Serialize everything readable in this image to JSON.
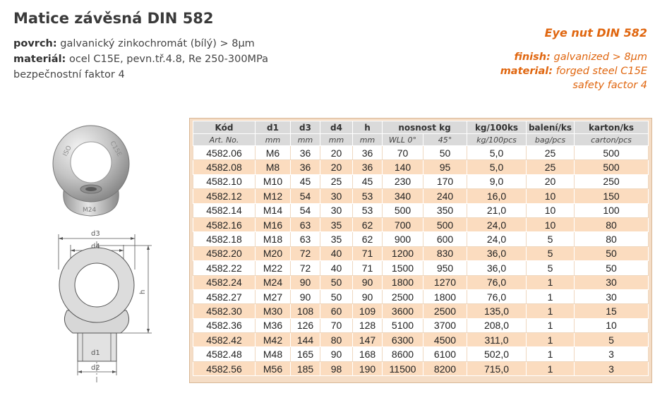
{
  "title": "Matice závěsná DIN 582",
  "cz": {
    "surface_label": "povrch:",
    "surface_value": "galvanický zinkochromát (bílý) > 8μm",
    "material_label": "materiál:",
    "material_value": "ocel C15E, pevn.tř.4.8, Re 250-300MPa",
    "safety": "bezpečnostní faktor 4"
  },
  "en": {
    "title": "Eye nut DIN 582",
    "finish_label": "finish:",
    "finish_value": "galvanized > 8μm",
    "material_label": "material:",
    "material_value": "forged steel C15E",
    "safety": "safety factor 4"
  },
  "photo_markings": {
    "left": "ISO",
    "right": "C15E",
    "bottom": "M24"
  },
  "drawing_labels": {
    "d3": "d3",
    "d4": "d4",
    "h": "h",
    "d1": "d1",
    "d2": "d2"
  },
  "colors": {
    "accent": "#e0660f",
    "header_bg": "#dadada",
    "row_alt": "#fbdcbf",
    "frame_bg": "#f5ddc6"
  },
  "table": {
    "header1": [
      "Kód",
      "d1",
      "d3",
      "d4",
      "h",
      "nosnost kg",
      "kg/100ks",
      "balení/ks",
      "karton/ks"
    ],
    "header2": [
      "Art. No.",
      "mm",
      "mm",
      "mm",
      "mm",
      "WLL 0°",
      "45°",
      "kg/100pcs",
      "bag/pcs",
      "carton/pcs"
    ],
    "rows": [
      [
        "4582.06",
        "M6",
        "36",
        "20",
        "36",
        "70",
        "50",
        "5,0",
        "25",
        "500"
      ],
      [
        "4582.08",
        "M8",
        "36",
        "20",
        "36",
        "140",
        "95",
        "5,0",
        "25",
        "500"
      ],
      [
        "4582.10",
        "M10",
        "45",
        "25",
        "45",
        "230",
        "170",
        "9,0",
        "20",
        "250"
      ],
      [
        "4582.12",
        "M12",
        "54",
        "30",
        "53",
        "340",
        "240",
        "16,0",
        "10",
        "150"
      ],
      [
        "4582.14",
        "M14",
        "54",
        "30",
        "53",
        "500",
        "350",
        "21,0",
        "10",
        "100"
      ],
      [
        "4582.16",
        "M16",
        "63",
        "35",
        "62",
        "700",
        "500",
        "24,0",
        "10",
        "80"
      ],
      [
        "4582.18",
        "M18",
        "63",
        "35",
        "62",
        "900",
        "600",
        "24,0",
        "5",
        "80"
      ],
      [
        "4582.20",
        "M20",
        "72",
        "40",
        "71",
        "1200",
        "830",
        "36,0",
        "5",
        "50"
      ],
      [
        "4582.22",
        "M22",
        "72",
        "40",
        "71",
        "1500",
        "950",
        "36,0",
        "5",
        "50"
      ],
      [
        "4582.24",
        "M24",
        "90",
        "50",
        "90",
        "1800",
        "1270",
        "76,0",
        "1",
        "30"
      ],
      [
        "4582.27",
        "M27",
        "90",
        "50",
        "90",
        "2500",
        "1800",
        "76,0",
        "1",
        "30"
      ],
      [
        "4582.30",
        "M30",
        "108",
        "60",
        "109",
        "3600",
        "2500",
        "135,0",
        "1",
        "15"
      ],
      [
        "4582.36",
        "M36",
        "126",
        "70",
        "128",
        "5100",
        "3700",
        "208,0",
        "1",
        "10"
      ],
      [
        "4582.42",
        "M42",
        "144",
        "80",
        "147",
        "6300",
        "4500",
        "311,0",
        "1",
        "5"
      ],
      [
        "4582.48",
        "M48",
        "165",
        "90",
        "168",
        "8600",
        "6100",
        "502,0",
        "1",
        "3"
      ],
      [
        "4582.56",
        "M56",
        "185",
        "98",
        "190",
        "11500",
        "8200",
        "715,0",
        "1",
        "3"
      ]
    ]
  }
}
